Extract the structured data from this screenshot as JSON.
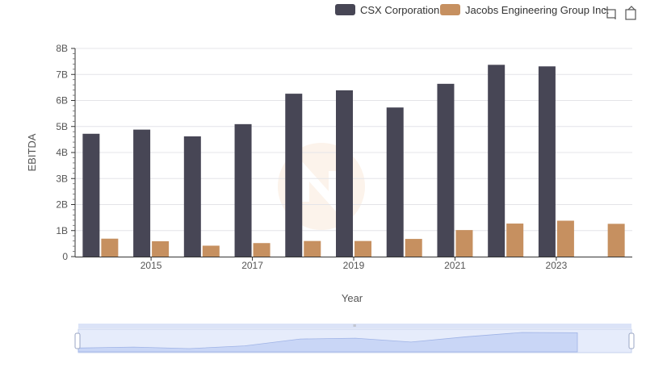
{
  "chart_data": {
    "type": "bar",
    "title": "",
    "xlabel": "Year",
    "ylabel": "EBITDA",
    "x_ticks": [
      "2015",
      "2017",
      "2019",
      "2021",
      "2023"
    ],
    "categories": [
      "2014",
      "2015",
      "2016",
      "2017",
      "2018",
      "2019",
      "2020",
      "2021",
      "2022",
      "2023",
      "2024"
    ],
    "y_ticks": [
      "0",
      "1B",
      "2B",
      "3B",
      "4B",
      "5B",
      "6B",
      "7B",
      "8B"
    ],
    "ylim": [
      0,
      8000000000
    ],
    "grid": true,
    "legend_position": "top-right",
    "series": [
      {
        "name": "CSX Corporation",
        "color": "#474655",
        "values": [
          4720000000,
          4880000000,
          4620000000,
          5090000000,
          6260000000,
          6390000000,
          5730000000,
          6640000000,
          7370000000,
          7310000000,
          null
        ]
      },
      {
        "name": "Jacobs Engineering Group Inc.",
        "color": "#c69060",
        "values": [
          690000000,
          590000000,
          420000000,
          520000000,
          600000000,
          600000000,
          680000000,
          1020000000,
          1270000000,
          1380000000,
          1260000000
        ]
      }
    ]
  },
  "toolbar": {
    "zoom_icon": "crop-zoom-icon",
    "reset_icon": "restore-icon"
  },
  "navigator": {
    "handle_label": "≡"
  }
}
